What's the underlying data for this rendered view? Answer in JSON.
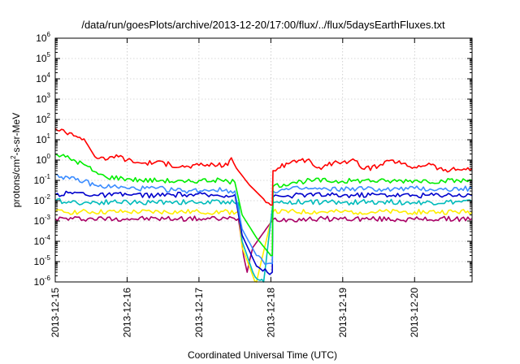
{
  "chart_data": {
    "type": "line",
    "title": "/data/run/goesPlots/archive/2013-12-20/17:00/flux/../flux/5daysEarthFluxes.txt",
    "xlabel": "Coordinated Universal Time (UTC)",
    "ylabel_parts": [
      "protons/cm",
      "2",
      "-s-sr-MeV"
    ],
    "x_unit": "days",
    "xlim": [
      0,
      5.8
    ],
    "x_ticks": [
      {
        "x": 0,
        "label": "2013-12-15"
      },
      {
        "x": 1,
        "label": "2013-12-16"
      },
      {
        "x": 2,
        "label": "2013-12-17"
      },
      {
        "x": 3,
        "label": "2013-12-18"
      },
      {
        "x": 4,
        "label": "2013-12-19"
      },
      {
        "x": 5,
        "label": "2013-12-20"
      }
    ],
    "y_scale": "log",
    "ylim": [
      1e-06,
      1000000.0
    ],
    "y_ticks": [
      {
        "exp": "-6"
      },
      {
        "exp": "-5"
      },
      {
        "exp": "-4"
      },
      {
        "exp": "-3"
      },
      {
        "exp": "-2"
      },
      {
        "exp": "-1"
      },
      {
        "exp": "0"
      },
      {
        "exp": "1"
      },
      {
        "exp": "2"
      },
      {
        "exp": "3"
      },
      {
        "exp": "4"
      },
      {
        "exp": "5"
      },
      {
        "exp": "6"
      }
    ],
    "y_tick_base": "10",
    "grid": true,
    "legend": "none",
    "series": [
      {
        "color": "#ff0000",
        "points": [
          [
            0,
            35
          ],
          [
            0.2,
            22
          ],
          [
            0.4,
            11
          ],
          [
            0.55,
            1.5
          ],
          [
            0.7,
            1.0
          ],
          [
            0.85,
            1.8
          ],
          [
            1.0,
            1.0
          ],
          [
            1.2,
            0.7
          ],
          [
            1.4,
            0.8
          ],
          [
            1.6,
            0.6
          ],
          [
            1.8,
            0.45
          ],
          [
            2.0,
            0.55
          ],
          [
            2.2,
            0.6
          ],
          [
            2.4,
            0.55
          ],
          [
            2.45,
            1.3
          ],
          [
            2.52,
            0.4
          ],
          [
            2.7,
            0.06
          ],
          [
            2.9,
            0.012
          ],
          [
            3.0,
            0.006
          ],
          [
            3.02,
            0.006
          ],
          [
            3.03,
            0.3
          ],
          [
            3.1,
            0.4
          ],
          [
            3.3,
            0.9
          ],
          [
            3.5,
            1.0
          ],
          [
            3.7,
            0.35
          ],
          [
            3.9,
            0.9
          ],
          [
            4.0,
            0.8
          ],
          [
            4.2,
            0.9
          ],
          [
            4.3,
            0.35
          ],
          [
            4.5,
            0.5
          ],
          [
            4.7,
            1.0
          ],
          [
            4.9,
            0.5
          ],
          [
            5.0,
            0.45
          ],
          [
            5.2,
            0.7
          ],
          [
            5.4,
            0.3
          ],
          [
            5.6,
            0.35
          ],
          [
            5.8,
            0.4
          ]
        ]
      },
      {
        "color": "#00ee00",
        "points": [
          [
            0,
            2
          ],
          [
            0.2,
            1.2
          ],
          [
            0.4,
            0.6
          ],
          [
            0.6,
            0.2
          ],
          [
            0.7,
            0.15
          ],
          [
            1.0,
            0.12
          ],
          [
            1.2,
            0.1
          ],
          [
            1.5,
            0.1
          ],
          [
            1.8,
            0.08
          ],
          [
            2.0,
            0.1
          ],
          [
            2.2,
            0.1
          ],
          [
            2.4,
            0.09
          ],
          [
            2.5,
            0.08
          ],
          [
            2.6,
            0.002
          ],
          [
            2.8,
            0.00015
          ],
          [
            3.0,
            2e-05
          ],
          [
            3.02,
            2e-05
          ],
          [
            3.03,
            0.05
          ],
          [
            3.3,
            0.08
          ],
          [
            3.6,
            0.1
          ],
          [
            4.0,
            0.09
          ],
          [
            4.3,
            0.1
          ],
          [
            4.6,
            0.09
          ],
          [
            5.0,
            0.1
          ],
          [
            5.4,
            0.09
          ],
          [
            5.8,
            0.1
          ]
        ]
      },
      {
        "color": "#3b8cff",
        "points": [
          [
            0,
            0.2
          ],
          [
            0.2,
            0.12
          ],
          [
            0.4,
            0.09
          ],
          [
            0.6,
            0.05
          ],
          [
            0.8,
            0.05
          ],
          [
            1.0,
            0.04
          ],
          [
            1.4,
            0.04
          ],
          [
            1.8,
            0.03
          ],
          [
            2.2,
            0.035
          ],
          [
            2.5,
            0.03
          ],
          [
            2.6,
            0.0004
          ],
          [
            2.8,
            2e-05
          ],
          [
            2.95,
            8e-06
          ],
          [
            3.02,
            8e-06
          ],
          [
            3.03,
            0.03
          ],
          [
            3.4,
            0.04
          ],
          [
            3.8,
            0.035
          ],
          [
            4.2,
            0.04
          ],
          [
            4.6,
            0.035
          ],
          [
            5.0,
            0.04
          ],
          [
            5.4,
            0.035
          ],
          [
            5.8,
            0.04
          ]
        ]
      },
      {
        "color": "#0000cc",
        "points": [
          [
            0,
            0.02
          ],
          [
            0.3,
            0.025
          ],
          [
            0.6,
            0.018
          ],
          [
            1.0,
            0.02
          ],
          [
            1.4,
            0.018
          ],
          [
            1.8,
            0.02
          ],
          [
            2.2,
            0.018
          ],
          [
            2.5,
            0.02
          ],
          [
            2.6,
            0.0002
          ],
          [
            2.8,
            6e-06
          ],
          [
            2.95,
            3e-06
          ],
          [
            3.02,
            3e-06
          ],
          [
            3.03,
            0.015
          ],
          [
            3.5,
            0.02
          ],
          [
            4.0,
            0.018
          ],
          [
            4.5,
            0.02
          ],
          [
            5.0,
            0.018
          ],
          [
            5.5,
            0.02
          ],
          [
            5.8,
            0.018
          ]
        ]
      },
      {
        "color": "#00bbbb",
        "points": [
          [
            0,
            0.01
          ],
          [
            0.4,
            0.008
          ],
          [
            0.8,
            0.009
          ],
          [
            1.2,
            0.008
          ],
          [
            1.6,
            0.009
          ],
          [
            2.0,
            0.008
          ],
          [
            2.4,
            0.009
          ],
          [
            2.55,
            0.008
          ],
          [
            2.6,
            0.0001
          ],
          [
            2.75,
            3e-06
          ],
          [
            2.85,
            1.2e-06
          ],
          [
            2.9,
            1e-06
          ],
          [
            3.03,
            0.008
          ],
          [
            3.5,
            0.009
          ],
          [
            4.0,
            0.008
          ],
          [
            4.5,
            0.009
          ],
          [
            5.0,
            0.008
          ],
          [
            5.8,
            0.009
          ]
        ]
      },
      {
        "color": "#ffee00",
        "points": [
          [
            0,
            0.0028
          ],
          [
            1.0,
            0.0028
          ],
          [
            2.0,
            0.0028
          ],
          [
            2.55,
            0.0028
          ],
          [
            2.6,
            5e-05
          ],
          [
            2.75,
            2e-06
          ],
          [
            2.8,
            1e-06
          ],
          [
            3.03,
            0.0028
          ],
          [
            4.0,
            0.0028
          ],
          [
            5.0,
            0.0028
          ],
          [
            5.8,
            0.0028
          ]
        ]
      },
      {
        "color": "#aa0066",
        "points": [
          [
            0,
            0.0013
          ],
          [
            1.0,
            0.0013
          ],
          [
            2.0,
            0.0013
          ],
          [
            2.55,
            0.0013
          ],
          [
            2.62,
            2e-05
          ],
          [
            2.67,
            3e-06
          ],
          [
            2.7,
            1e-05
          ],
          [
            2.75,
            5e-05
          ],
          [
            3.03,
            0.0012
          ],
          [
            4.0,
            0.0013
          ],
          [
            5.0,
            0.0012
          ],
          [
            5.8,
            0.0013
          ]
        ]
      }
    ]
  }
}
